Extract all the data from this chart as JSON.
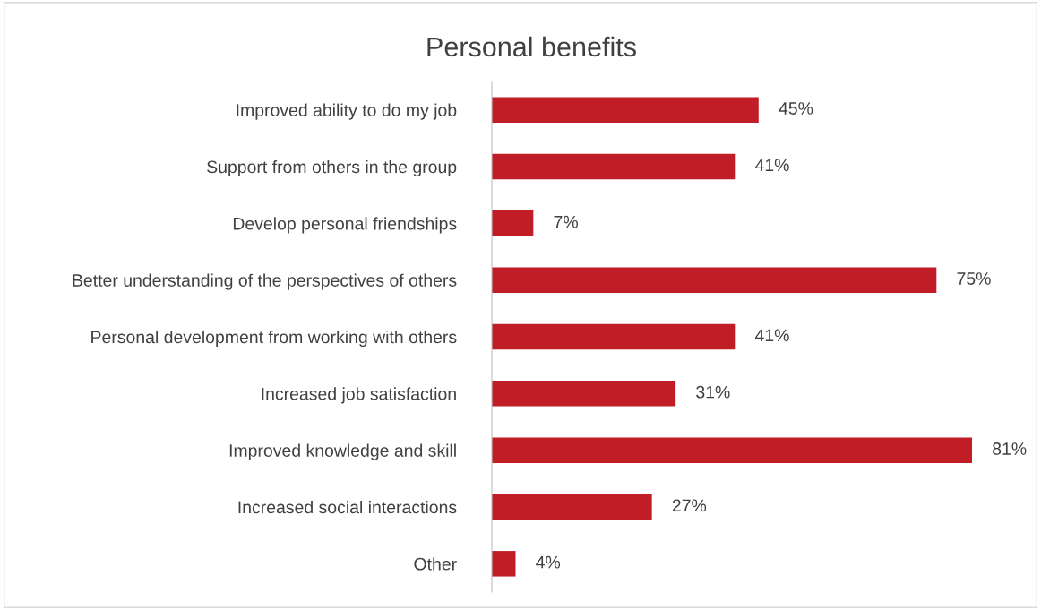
{
  "chart_data": {
    "type": "bar",
    "orientation": "horizontal",
    "title": "Personal benefits",
    "categories": [
      "Improved ability to do my job",
      "Support from others in the group",
      "Develop personal friendships",
      "Better understanding of the perspectives of others",
      "Personal development from working with others",
      "Increased job satisfaction",
      "Improved knowledge and skill",
      "Increased social interactions",
      "Other"
    ],
    "values": [
      45,
      41,
      7,
      75,
      41,
      31,
      81,
      27,
      4
    ],
    "value_labels": [
      "45%",
      "41%",
      "7%",
      "75%",
      "41%",
      "31%",
      "81%",
      "27%",
      "4%"
    ],
    "color": "#c01d26",
    "grid": false,
    "legend": false
  }
}
